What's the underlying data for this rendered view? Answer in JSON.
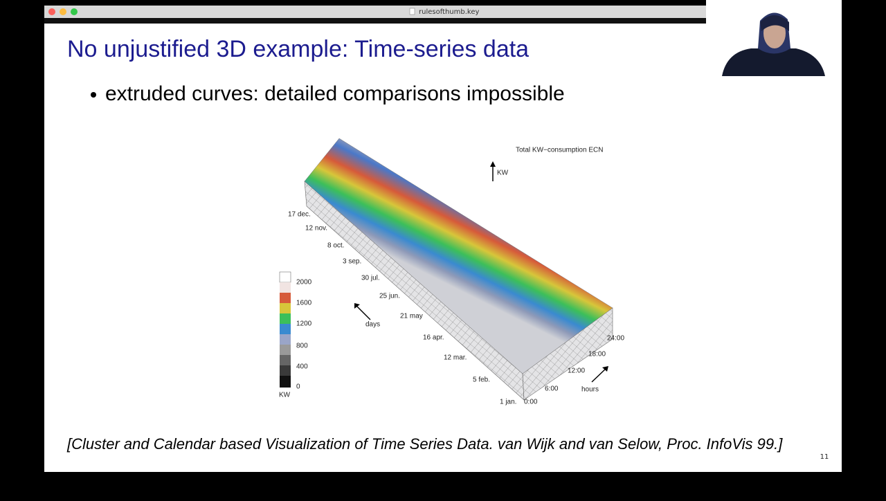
{
  "window": {
    "title": "rulesofthumb.key"
  },
  "slide": {
    "title": "No unjustified 3D example: Time-series data",
    "bullet": "extruded curves: detailed comparisons impossible",
    "citation": "[Cluster and Calendar based Visualization of Time Series Data. van Wijk and van Selow, Proc. InfoVis 99.]",
    "page_number": "11"
  },
  "figure": {
    "title": "Total KW−consumption ECN",
    "up_axis_label": "KW",
    "days_label": "days",
    "hours_label": "hours",
    "date_labels": [
      "17 dec.",
      "12 nov.",
      "8 oct.",
      "3 sep.",
      "30 jul.",
      "25 jun.",
      "21 may",
      "16 apr.",
      "12 mar.",
      "5 feb.",
      "1 jan."
    ],
    "hour_labels": [
      "0:00",
      "6:00",
      "12:00",
      "18:00",
      "24:00"
    ],
    "legend": {
      "labels": [
        "2000",
        "1600",
        "1200",
        "800",
        "400",
        "0"
      ],
      "unit": "KW"
    }
  }
}
